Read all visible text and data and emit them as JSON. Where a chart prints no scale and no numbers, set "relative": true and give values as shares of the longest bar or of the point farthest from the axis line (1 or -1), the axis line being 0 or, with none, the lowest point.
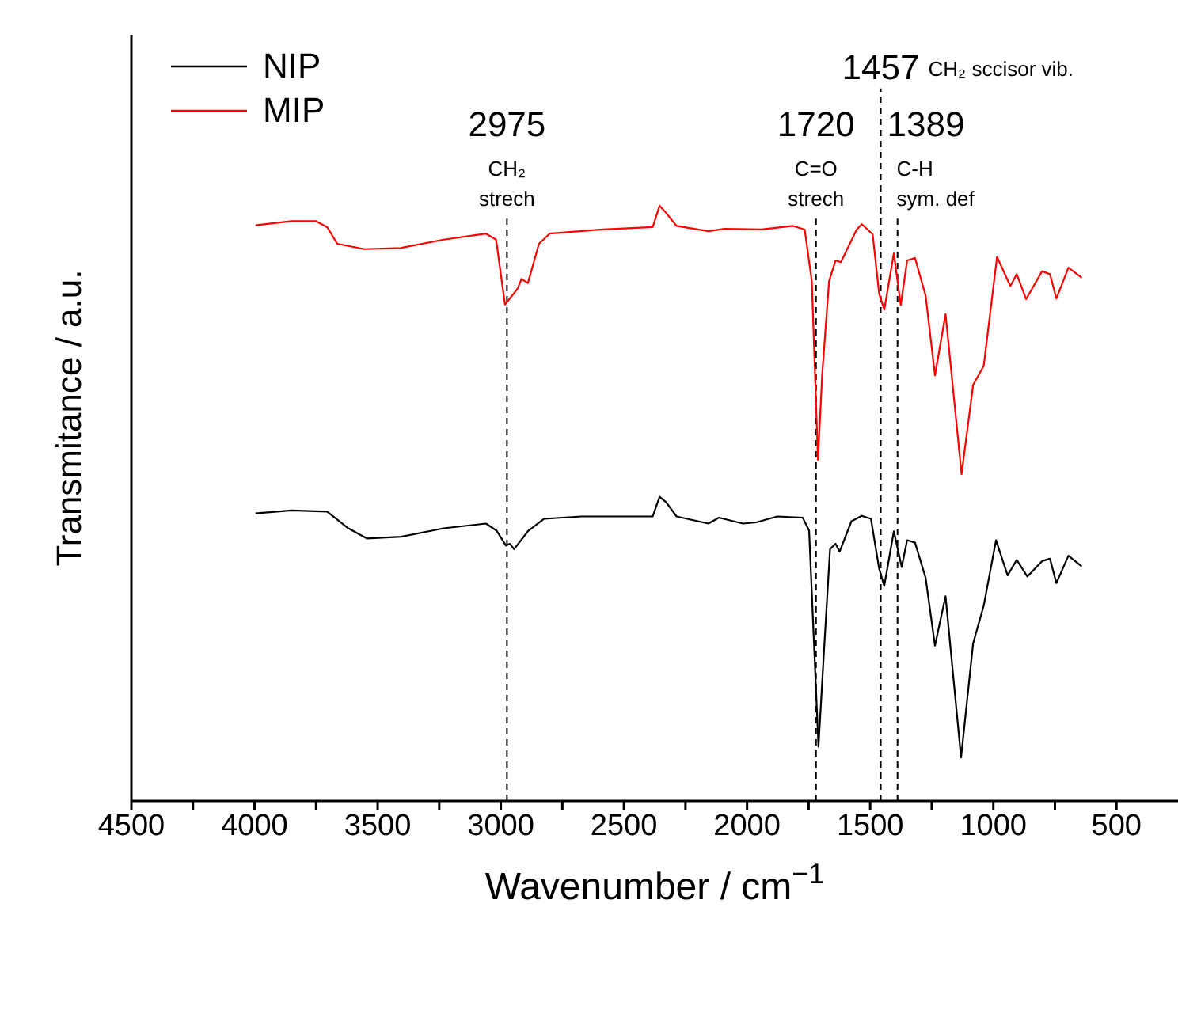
{
  "chart_data": {
    "type": "line",
    "relative": true,
    "xlabel": "Wavenumber / cm$^{−1}$",
    "ylabel": "Transmitance / a.u.",
    "legend": "top left",
    "xlim": [
      4500,
      250
    ],
    "xticks": [
      4500,
      {
        "value": 4250,
        "label": null
      },
      4000,
      {
        "value": 3750,
        "label": null
      },
      3500,
      {
        "value": 3250,
        "label": null
      },
      3000,
      {
        "value": 2750,
        "label": null
      },
      2500,
      {
        "value": 2250,
        "label": null
      },
      2000,
      {
        "value": 1750,
        "label": null
      },
      1500,
      {
        "value": 1250,
        "label": null
      },
      1000,
      {
        "value": 750,
        "label": null
      },
      500
    ],
    "series": [
      {
        "name": "NIP",
        "color": "#000000",
        "x": [
          3996,
          3850,
          3705,
          3619,
          3544,
          3404,
          3232,
          3060,
          3017,
          2979,
          2963,
          2946,
          2888,
          2824,
          2673,
          2383,
          2355,
          2329,
          2286,
          2157,
          2114,
          2017,
          1963,
          1877,
          1774,
          1748,
          1710,
          1688,
          1663,
          1641,
          1624,
          1576,
          1534,
          1497,
          1464,
          1443,
          1404,
          1372,
          1350,
          1318,
          1275,
          1237,
          1194,
          1131,
          1082,
          1039,
          989,
          942,
          905,
          862,
          802,
          770,
          744,
          695,
          641
        ],
        "values": [
          0.483,
          0.488,
          0.486,
          0.458,
          0.441,
          0.444,
          0.458,
          0.466,
          0.454,
          0.429,
          0.432,
          0.423,
          0.454,
          0.474,
          0.478,
          0.478,
          0.511,
          0.502,
          0.478,
          0.466,
          0.476,
          0.466,
          0.468,
          0.478,
          0.476,
          0.454,
          0.091,
          0.249,
          0.423,
          0.432,
          0.419,
          0.47,
          0.479,
          0.474,
          0.391,
          0.361,
          0.453,
          0.393,
          0.438,
          0.434,
          0.375,
          0.261,
          0.344,
          0.073,
          0.265,
          0.328,
          0.438,
          0.379,
          0.405,
          0.377,
          0.403,
          0.407,
          0.366,
          0.412,
          0.394
        ]
      },
      {
        "name": "MIP",
        "color": "#ff0000",
        "x": [
          3996,
          3850,
          3750,
          3705,
          3664,
          3554,
          3406,
          3232,
          3060,
          3019,
          2983,
          2931,
          2916,
          2890,
          2845,
          2802,
          2587,
          2383,
          2355,
          2329,
          2286,
          2157,
          2092,
          1942,
          1813,
          1766,
          1737,
          1712,
          1695,
          1667,
          1641,
          1619,
          1555,
          1534,
          1490,
          1464,
          1443,
          1404,
          1376,
          1350,
          1318,
          1275,
          1237,
          1194,
          1129,
          1082,
          1039,
          985,
          931,
          905,
          867,
          802,
          770,
          744,
          695,
          641
        ],
        "values": [
          0.967,
          0.974,
          0.974,
          0.964,
          0.936,
          0.927,
          0.929,
          0.943,
          0.953,
          0.943,
          0.834,
          0.861,
          0.877,
          0.87,
          0.936,
          0.953,
          0.96,
          0.964,
          1,
          0.988,
          0.966,
          0.957,
          0.961,
          0.96,
          0.966,
          0.96,
          0.873,
          0.573,
          0.716,
          0.873,
          0.908,
          0.905,
          0.96,
          0.969,
          0.952,
          0.853,
          0.825,
          0.92,
          0.833,
          0.908,
          0.912,
          0.849,
          0.715,
          0.818,
          0.549,
          0.699,
          0.731,
          0.914,
          0.865,
          0.885,
          0.843,
          0.89,
          0.885,
          0.844,
          0.896,
          0.879
        ]
      }
    ],
    "ref_lines": [
      {
        "axis": "x",
        "value": 2975,
        "label": "2975",
        "color": "#000000",
        "line_style": "dashed"
      },
      {
        "axis": "x",
        "value": 1720,
        "label": "1720",
        "color": "#000000",
        "line_style": "dashed"
      },
      {
        "axis": "x",
        "value": 1457,
        "label": "1457",
        "color": "#000000",
        "line_style": "dashed"
      },
      {
        "axis": "x",
        "value": 1389,
        "label": "1389",
        "color": "#000000",
        "line_style": "dashed"
      }
    ],
    "annotations": [
      "CH₂\nstrech",
      "C=O\nstrech",
      "CH₂ sccisor vib.",
      "C-H\nsym. def"
    ]
  }
}
